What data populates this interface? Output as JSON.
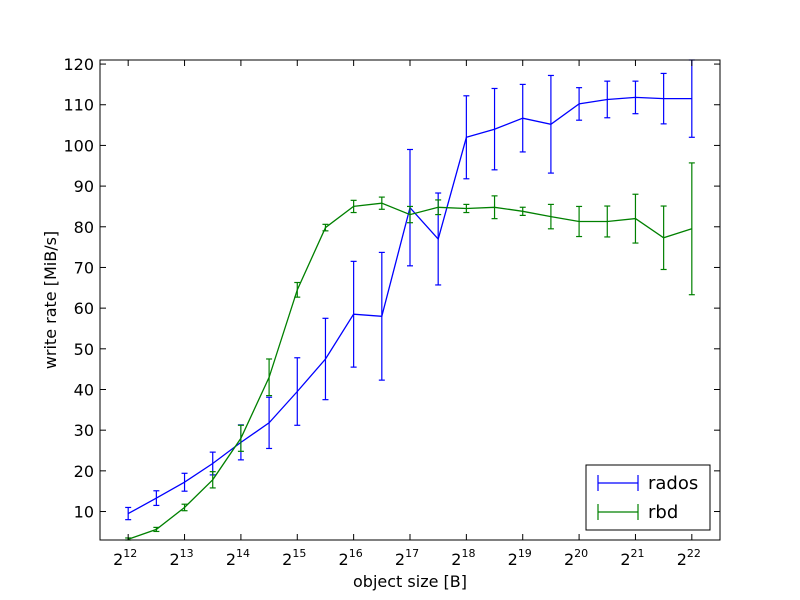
{
  "chart_data": {
    "type": "line",
    "xlabel": "object size [B]",
    "ylabel": "write rate [MiB/s]",
    "x_scale": "log2",
    "x_tick_base": "2",
    "x_tick_exponents": [
      "12",
      "13",
      "14",
      "15",
      "16",
      "17",
      "18",
      "19",
      "20",
      "21",
      "22"
    ],
    "xlim_exp": [
      11.5,
      22.5
    ],
    "ylim": [
      3,
      121
    ],
    "y_ticks": [
      10,
      20,
      30,
      40,
      50,
      60,
      70,
      80,
      90,
      100,
      110,
      120
    ],
    "legend_position": "lower-right",
    "series": [
      {
        "name": "rados",
        "color": "#0000ff",
        "x_exp": [
          12,
          12.5,
          13,
          13.5,
          14,
          14.5,
          15,
          15.5,
          16,
          16.5,
          17,
          17.5,
          18,
          18.5,
          19,
          19.5,
          20,
          20.5,
          21,
          21.5,
          22
        ],
        "y": [
          9.5,
          13.3,
          17.2,
          21.8,
          27.0,
          31.8,
          39.5,
          47.5,
          58.5,
          58.0,
          84.7,
          77.0,
          102.0,
          104.0,
          106.7,
          105.2,
          110.2,
          111.3,
          111.8,
          111.5,
          111.5
        ],
        "err": [
          1.5,
          1.8,
          2.2,
          2.8,
          4.3,
          6.3,
          8.3,
          10.0,
          13.0,
          15.7,
          14.3,
          11.3,
          10.2,
          10.0,
          8.3,
          12.0,
          4.0,
          4.5,
          4.0,
          6.2,
          9.5
        ]
      },
      {
        "name": "rbd",
        "color": "#008000",
        "x_exp": [
          12,
          12.5,
          13,
          13.5,
          14,
          14.5,
          15,
          15.5,
          16,
          16.5,
          17,
          17.5,
          18,
          18.5,
          19,
          19.5,
          20,
          20.5,
          21,
          21.5,
          22
        ],
        "y": [
          3.2,
          5.6,
          11.0,
          17.8,
          28.0,
          43.0,
          64.5,
          79.8,
          85.0,
          85.8,
          83.0,
          84.8,
          84.5,
          84.8,
          83.8,
          82.5,
          81.3,
          81.3,
          82.0,
          77.3,
          79.5
        ],
        "err": [
          0.3,
          0.5,
          0.8,
          2.0,
          3.2,
          4.5,
          1.8,
          0.8,
          1.5,
          1.5,
          2.0,
          1.8,
          1.0,
          2.8,
          1.0,
          3.0,
          3.7,
          3.8,
          6.0,
          7.8,
          16.2
        ]
      }
    ]
  }
}
